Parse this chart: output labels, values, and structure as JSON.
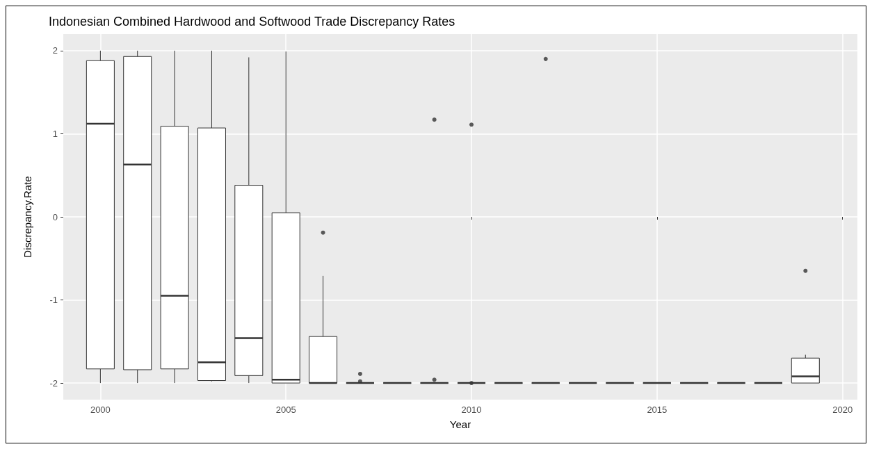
{
  "chart_data": {
    "type": "box",
    "title": "Indonesian Combined Hardwood and Softwood Trade Discrepancy Rates",
    "xlabel": "Year",
    "ylabel": "Discrepancy.Rate",
    "x": [
      2000,
      2001,
      2002,
      2003,
      2004,
      2005,
      2006,
      2007,
      2008,
      2009,
      2010,
      2011,
      2012,
      2013,
      2014,
      2015,
      2016,
      2017,
      2018,
      2019
    ],
    "boxes": [
      {
        "low": -2,
        "q1": -1.83,
        "median": 1.12,
        "q3": 1.88,
        "high": 2
      },
      {
        "low": -2,
        "q1": -1.84,
        "median": 0.63,
        "q3": 1.93,
        "high": 2
      },
      {
        "low": -2,
        "q1": -1.83,
        "median": -0.95,
        "q3": 1.09,
        "high": 2
      },
      {
        "low": -1.98,
        "q1": -1.97,
        "median": -1.75,
        "q3": 1.07,
        "high": 2
      },
      {
        "low": -2,
        "q1": -1.91,
        "median": -1.46,
        "q3": 0.38,
        "high": 1.92
      },
      {
        "low": -2,
        "q1": -2,
        "median": -1.96,
        "q3": 0.05,
        "high": 1.99
      },
      {
        "low": -2,
        "q1": -2,
        "median": -2,
        "q3": -1.44,
        "high": -0.71,
        "outliers": [
          -0.19
        ]
      },
      {
        "low": -2,
        "q1": -2,
        "median": -2,
        "q3": -2,
        "high": -2,
        "outliers": [
          -1.89,
          -1.98
        ]
      },
      {
        "low": -2,
        "q1": -2,
        "median": -2,
        "q3": -2,
        "high": -2
      },
      {
        "low": -2,
        "q1": -2,
        "median": -2,
        "q3": -2,
        "high": -2,
        "outliers": [
          1.17,
          -1.96
        ]
      },
      {
        "low": -2,
        "q1": -2,
        "median": -2,
        "q3": -2,
        "high": -2,
        "outliers": [
          1.11,
          -2
        ]
      },
      {
        "low": -2,
        "q1": -2,
        "median": -2,
        "q3": -2,
        "high": -2
      },
      {
        "low": -2,
        "q1": -2,
        "median": -2,
        "q3": -2,
        "high": -2,
        "outliers": [
          1.9
        ]
      },
      {
        "low": -2,
        "q1": -2,
        "median": -2,
        "q3": -2,
        "high": -2
      },
      {
        "low": -2,
        "q1": -2,
        "median": -2,
        "q3": -2,
        "high": -2
      },
      {
        "low": -2,
        "q1": -2,
        "median": -2,
        "q3": -2,
        "high": -2
      },
      {
        "low": -2,
        "q1": -2,
        "median": -2,
        "q3": -2,
        "high": -2
      },
      {
        "low": -2,
        "q1": -2,
        "median": -2,
        "q3": -2,
        "high": -2
      },
      {
        "low": -2,
        "q1": -2,
        "median": -2,
        "q3": -2,
        "high": -2
      },
      {
        "low": -2,
        "q1": -2,
        "median": -1.92,
        "q3": -1.7,
        "high": -1.66,
        "outliers": [
          -0.65
        ]
      }
    ],
    "color": "#333333",
    "xlim": [
      1999.0,
      2020.4
    ],
    "xticks": [
      2000,
      2005,
      2010,
      2015,
      2020
    ],
    "ylim": [
      -2.2,
      2.2
    ],
    "yticks": [
      -2,
      -1,
      0,
      1,
      2
    ],
    "grid": true
  }
}
